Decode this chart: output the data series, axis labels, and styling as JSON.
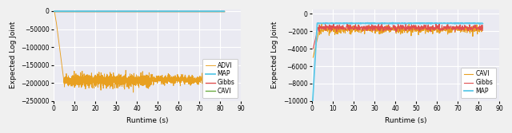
{
  "left_plot": {
    "xlabel": "Runtime (s)",
    "ylabel": "Expected Log Joint",
    "xlim": [
      0,
      90
    ],
    "ylim": [
      -250000,
      5000
    ],
    "yticks": [
      0,
      -50000,
      -100000,
      -150000,
      -200000,
      -250000
    ],
    "xticks": [
      0,
      10,
      20,
      30,
      40,
      50,
      60,
      70,
      80,
      90
    ],
    "legend_order": [
      "MAP",
      "Gibbs",
      "ADVI",
      "CAVI"
    ],
    "colors": {
      "MAP": "#5bc8e8",
      "Gibbs": "#e05050",
      "ADVI": "#e8a020",
      "CAVI": "#6aaa40"
    }
  },
  "right_plot": {
    "xlabel": "Runtime (s)",
    "ylabel": "Expected Log Joint",
    "xlim": [
      0,
      90
    ],
    "ylim": [
      -10000,
      500
    ],
    "yticks": [
      0,
      -2000,
      -4000,
      -6000,
      -8000,
      -10000
    ],
    "xticks": [
      0,
      10,
      20,
      30,
      40,
      50,
      60,
      70,
      80,
      90
    ],
    "legend_order": [
      "MAP",
      "Gibbs",
      "CAVI"
    ],
    "colors": {
      "MAP": "#5bc8e8",
      "Gibbs": "#e05050",
      "CAVI": "#e8a020"
    }
  },
  "background_color": "#eaeaf2",
  "grid_color": "#ffffff",
  "figsize": [
    6.4,
    1.67
  ],
  "dpi": 100
}
